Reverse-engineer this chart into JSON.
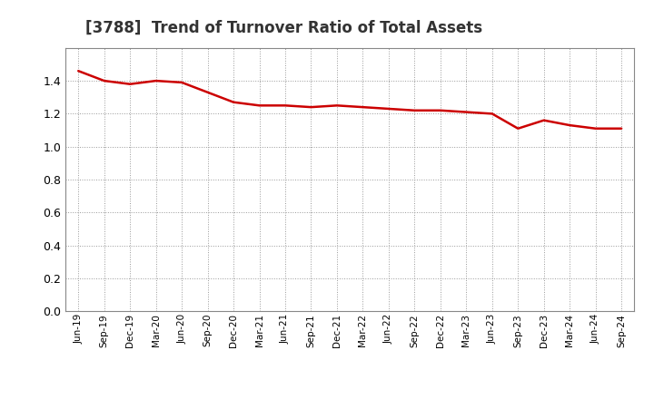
{
  "title": "[3788]  Trend of Turnover Ratio of Total Assets",
  "title_fontsize": 12,
  "title_color": "#333333",
  "line_color": "#cc0000",
  "line_width": 1.8,
  "background_color": "#ffffff",
  "grid_color": "#999999",
  "ylim": [
    0.0,
    1.6
  ],
  "yticks": [
    0.0,
    0.2,
    0.4,
    0.6,
    0.8,
    1.0,
    1.2,
    1.4
  ],
  "x_labels": [
    "Jun-19",
    "Sep-19",
    "Dec-19",
    "Mar-20",
    "Jun-20",
    "Sep-20",
    "Dec-20",
    "Mar-21",
    "Jun-21",
    "Sep-21",
    "Dec-21",
    "Mar-22",
    "Jun-22",
    "Sep-22",
    "Dec-22",
    "Mar-23",
    "Jun-23",
    "Sep-23",
    "Dec-23",
    "Mar-24",
    "Jun-24",
    "Sep-24"
  ],
  "y_values": [
    1.46,
    1.4,
    1.38,
    1.4,
    1.39,
    1.33,
    1.27,
    1.25,
    1.25,
    1.24,
    1.25,
    1.24,
    1.23,
    1.22,
    1.22,
    1.21,
    1.2,
    1.11,
    1.16,
    1.13,
    1.11,
    1.11
  ]
}
